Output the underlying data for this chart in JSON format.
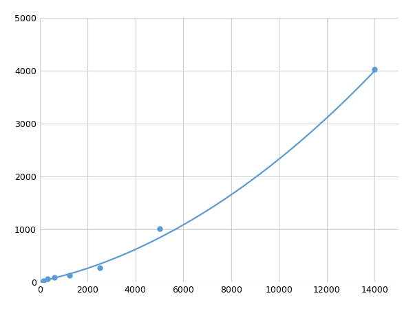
{
  "x_points": [
    156,
    313,
    625,
    1250,
    2500,
    5000,
    14000
  ],
  "y_points": [
    28,
    75,
    100,
    130,
    270,
    1020,
    4020
  ],
  "line_color": "#5b9bd5",
  "marker_color": "#5b9bd5",
  "marker_size": 5,
  "line_width": 1.6,
  "xlim": [
    0,
    15000
  ],
  "ylim": [
    0,
    5000
  ],
  "xticks": [
    0,
    2000,
    4000,
    6000,
    8000,
    10000,
    12000,
    14000
  ],
  "yticks": [
    0,
    1000,
    2000,
    3000,
    4000,
    5000
  ],
  "grid_color": "#d0d0d0",
  "background_color": "#ffffff",
  "figsize": [
    6.0,
    4.5
  ],
  "dpi": 100
}
